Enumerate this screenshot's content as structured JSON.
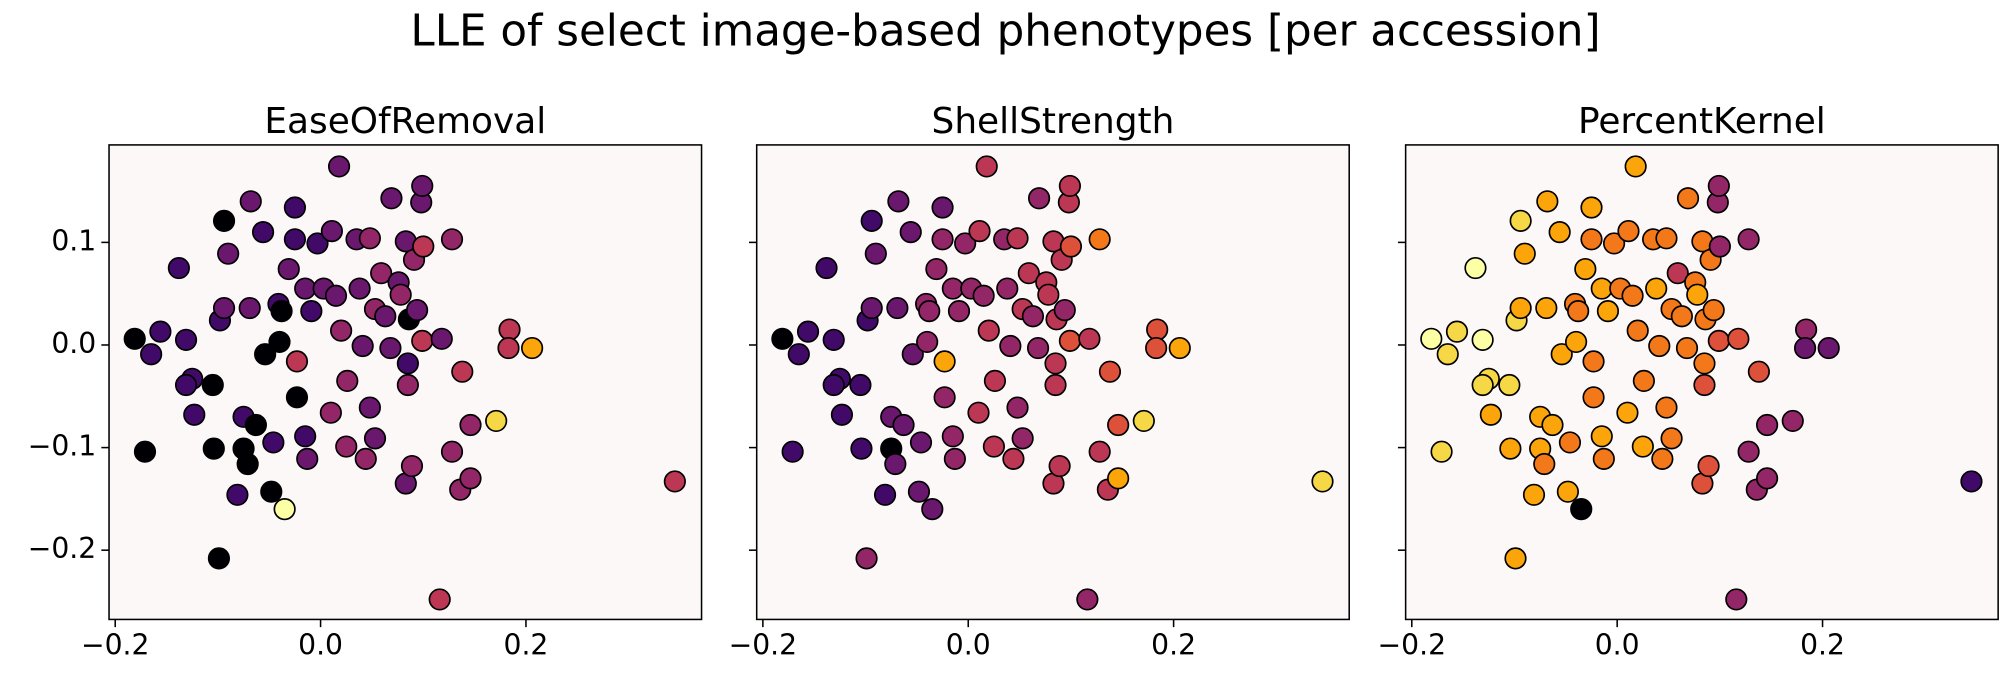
{
  "title": "LLE of select image-based phenotypes [per accession]",
  "chart_data": [
    {
      "type": "scatter",
      "title": "EaseOfRemoval",
      "x": [
        -0.181,
        -0.165,
        -0.171,
        -0.156,
        -0.138,
        -0.131,
        -0.125,
        -0.123,
        -0.131,
        -0.105,
        -0.104,
        -0.094,
        -0.098,
        -0.094,
        -0.09,
        -0.081,
        -0.075,
        -0.075,
        -0.071,
        -0.069,
        -0.068,
        -0.063,
        -0.056,
        -0.054,
        -0.048,
        -0.046,
        -0.041,
        -0.035,
        -0.04,
        -0.038,
        -0.031,
        -0.025,
        -0.025,
        -0.023,
        -0.023,
        -0.015,
        -0.013,
        -0.015,
        -0.009,
        -0.003,
        0.003,
        0.01,
        0.011,
        0.015,
        0.018,
        0.02,
        0.025,
        0.026,
        0.035,
        0.038,
        0.041,
        0.044,
        0.048,
        0.048,
        0.053,
        0.053,
        0.059,
        0.063,
        0.068,
        0.069,
        0.076,
        0.078,
        0.083,
        0.085,
        0.091,
        0.086,
        0.094,
        0.099,
        0.098,
        0.099,
        0.1,
        0.085,
        0.083,
        0.089,
        0.118,
        0.128,
        0.138,
        0.128,
        0.136,
        0.146,
        0.146,
        0.171,
        0.184,
        0.183,
        0.206,
        0.116,
        0.345,
        -0.099
      ],
      "values": [
        0.006,
        -0.009,
        -0.104,
        0.013,
        0.075,
        0.005,
        -0.033,
        -0.068,
        -0.039,
        -0.039,
        -0.101,
        0.121,
        0.024,
        0.036,
        0.089,
        -0.146,
        -0.07,
        -0.101,
        -0.116,
        0.036,
        0.14,
        -0.078,
        0.11,
        -0.009,
        -0.143,
        -0.095,
        0.04,
        -0.16,
        0.003,
        0.033,
        0.074,
        0.134,
        0.103,
        -0.016,
        -0.051,
        -0.089,
        -0.111,
        0.055,
        0.033,
        0.099,
        0.055,
        -0.066,
        0.111,
        0.048,
        0.174,
        0.014,
        -0.099,
        -0.035,
        0.103,
        0.055,
        -0.001,
        -0.111,
        -0.061,
        0.104,
        -0.091,
        0.035,
        0.07,
        0.028,
        -0.003,
        0.143,
        0.061,
        0.049,
        0.101,
        -0.018,
        0.083,
        0.025,
        0.034,
        0.004,
        0.139,
        0.155,
        0.096,
        -0.039,
        -0.135,
        -0.118,
        0.006,
        0.103,
        -0.026,
        -0.104,
        -0.141,
        -0.13,
        -0.078,
        -0.074,
        0.015,
        -0.003,
        -0.003,
        -0.248,
        -0.133,
        -0.208
      ],
      "colors": [
        "#000004",
        "#420a68",
        "#000004",
        "#420a68",
        "#420a68",
        "#420a68",
        "#420a68",
        "#420a68",
        "#420a68",
        "#000004",
        "#000004",
        "#000004",
        "#420a68",
        "#6a176e",
        "#6a176e",
        "#420a68",
        "#420a68",
        "#000004",
        "#000004",
        "#6a176e",
        "#6a176e",
        "#000004",
        "#420a68",
        "#000004",
        "#000004",
        "#420a68",
        "#420a68",
        "#fcffa4",
        "#000004",
        "#000004",
        "#6a176e",
        "#420a68",
        "#420a68",
        "#bc3754",
        "#000004",
        "#420a68",
        "#6a176e",
        "#6a176e",
        "#420a68",
        "#420a68",
        "#6a176e",
        "#932667",
        "#6a176e",
        "#6a176e",
        "#6a176e",
        "#932667",
        "#932667",
        "#932667",
        "#6a176e",
        "#6a176e",
        "#6a176e",
        "#932667",
        "#6a176e",
        "#932667",
        "#6a176e",
        "#932667",
        "#932667",
        "#6a176e",
        "#6a176e",
        "#6a176e",
        "#6a176e",
        "#932667",
        "#6a176e",
        "#420a68",
        "#932667",
        "#000004",
        "#6a176e",
        "#bc3754",
        "#6a176e",
        "#6a176e",
        "#bc3754",
        "#932667",
        "#6a176e",
        "#932667",
        "#6a176e",
        "#932667",
        "#bc3754",
        "#932667",
        "#932667",
        "#932667",
        "#932667",
        "#f6d746",
        "#bc3754",
        "#bc3754",
        "#fca50a",
        "#bc3754",
        "#bc3754",
        "#000004"
      ],
      "xlim": [
        -0.206,
        0.371
      ],
      "ylim": [
        -0.2675,
        0.195
      ],
      "xticks": [
        {
          "value": -0.2,
          "label": "−0.2"
        },
        {
          "value": 0,
          "label": "0.0"
        },
        {
          "value": 0.2,
          "label": "0.2"
        }
      ],
      "yticks": [
        {
          "value": -0.2,
          "label": "−0.2"
        },
        {
          "value": -0.1,
          "label": "−0.1"
        },
        {
          "value": 0,
          "label": "0.0"
        },
        {
          "value": 0.1,
          "label": "0.1"
        }
      ],
      "background": "#fcf8f8"
    },
    {
      "type": "scatter",
      "title": "ShellStrength",
      "x": [
        -0.181,
        -0.165,
        -0.171,
        -0.156,
        -0.138,
        -0.131,
        -0.125,
        -0.123,
        -0.131,
        -0.105,
        -0.104,
        -0.094,
        -0.098,
        -0.094,
        -0.09,
        -0.081,
        -0.075,
        -0.075,
        -0.071,
        -0.069,
        -0.068,
        -0.063,
        -0.056,
        -0.054,
        -0.048,
        -0.046,
        -0.041,
        -0.035,
        -0.04,
        -0.038,
        -0.031,
        -0.025,
        -0.025,
        -0.023,
        -0.023,
        -0.015,
        -0.013,
        -0.015,
        -0.009,
        -0.003,
        0.003,
        0.01,
        0.011,
        0.015,
        0.018,
        0.02,
        0.025,
        0.026,
        0.035,
        0.038,
        0.041,
        0.044,
        0.048,
        0.048,
        0.053,
        0.053,
        0.059,
        0.063,
        0.068,
        0.069,
        0.076,
        0.078,
        0.083,
        0.085,
        0.091,
        0.086,
        0.094,
        0.099,
        0.098,
        0.099,
        0.1,
        0.085,
        0.083,
        0.089,
        0.118,
        0.128,
        0.138,
        0.128,
        0.136,
        0.146,
        0.146,
        0.171,
        0.184,
        0.183,
        0.206,
        0.116,
        0.345,
        -0.099
      ],
      "values": [
        0.006,
        -0.009,
        -0.104,
        0.013,
        0.075,
        0.005,
        -0.033,
        -0.068,
        -0.039,
        -0.039,
        -0.101,
        0.121,
        0.024,
        0.036,
        0.089,
        -0.146,
        -0.07,
        -0.101,
        -0.116,
        0.036,
        0.14,
        -0.078,
        0.11,
        -0.009,
        -0.143,
        -0.095,
        0.04,
        -0.16,
        0.003,
        0.033,
        0.074,
        0.134,
        0.103,
        -0.016,
        -0.051,
        -0.089,
        -0.111,
        0.055,
        0.033,
        0.099,
        0.055,
        -0.066,
        0.111,
        0.048,
        0.174,
        0.014,
        -0.099,
        -0.035,
        0.103,
        0.055,
        -0.001,
        -0.111,
        -0.061,
        0.104,
        -0.091,
        0.035,
        0.07,
        0.028,
        -0.003,
        0.143,
        0.061,
        0.049,
        0.101,
        -0.018,
        0.083,
        0.025,
        0.034,
        0.004,
        0.139,
        0.155,
        0.096,
        -0.039,
        -0.135,
        -0.118,
        0.006,
        0.103,
        -0.026,
        -0.104,
        -0.141,
        -0.13,
        -0.078,
        -0.074,
        0.015,
        -0.003,
        -0.003,
        -0.248,
        -0.133,
        -0.208
      ],
      "colors": [
        "#000004",
        "#420a68",
        "#420a68",
        "#420a68",
        "#420a68",
        "#420a68",
        "#420a68",
        "#420a68",
        "#420a68",
        "#420a68",
        "#420a68",
        "#420a68",
        "#420a68",
        "#6a176e",
        "#6a176e",
        "#420a68",
        "#6a176e",
        "#000004",
        "#6a176e",
        "#6a176e",
        "#6a176e",
        "#6a176e",
        "#6a176e",
        "#6a176e",
        "#6a176e",
        "#6a176e",
        "#932667",
        "#6a176e",
        "#932667",
        "#932667",
        "#932667",
        "#6a176e",
        "#932667",
        "#fca50a",
        "#932667",
        "#932667",
        "#932667",
        "#932667",
        "#932667",
        "#932667",
        "#932667",
        "#bc3754",
        "#bc3754",
        "#932667",
        "#bc3754",
        "#bc3754",
        "#bc3754",
        "#bc3754",
        "#932667",
        "#932667",
        "#932667",
        "#bc3754",
        "#932667",
        "#bc3754",
        "#932667",
        "#bc3754",
        "#bc3754",
        "#932667",
        "#932667",
        "#932667",
        "#bc3754",
        "#bc3754",
        "#bc3754",
        "#bc3754",
        "#bc3754",
        "#bc3754",
        "#932667",
        "#dd513a",
        "#bc3754",
        "#bc3754",
        "#dd513a",
        "#bc3754",
        "#bc3754",
        "#bc3754",
        "#bc3754",
        "#f37819",
        "#dd513a",
        "#bc3754",
        "#bc3754",
        "#fca50a",
        "#dd513a",
        "#f6d746",
        "#dd513a",
        "#dd513a",
        "#fca50a",
        "#932667",
        "#f6d746",
        "#932667"
      ],
      "xlim": [
        -0.206,
        0.371
      ],
      "ylim": [
        -0.2675,
        0.195
      ],
      "xticks": [
        {
          "value": -0.2,
          "label": "−0.2"
        },
        {
          "value": 0,
          "label": "0.0"
        },
        {
          "value": 0.2,
          "label": "0.2"
        }
      ],
      "yticks": [
        -0.2,
        -0.1,
        0,
        0.1
      ],
      "background": "#fcf8f8"
    },
    {
      "type": "scatter",
      "title": "PercentKernel",
      "x": [
        -0.181,
        -0.165,
        -0.171,
        -0.156,
        -0.138,
        -0.131,
        -0.125,
        -0.123,
        -0.131,
        -0.105,
        -0.104,
        -0.094,
        -0.098,
        -0.094,
        -0.09,
        -0.081,
        -0.075,
        -0.075,
        -0.071,
        -0.069,
        -0.068,
        -0.063,
        -0.056,
        -0.054,
        -0.048,
        -0.046,
        -0.041,
        -0.035,
        -0.04,
        -0.038,
        -0.031,
        -0.025,
        -0.025,
        -0.023,
        -0.023,
        -0.015,
        -0.013,
        -0.015,
        -0.009,
        -0.003,
        0.003,
        0.01,
        0.011,
        0.015,
        0.018,
        0.02,
        0.025,
        0.026,
        0.035,
        0.038,
        0.041,
        0.044,
        0.048,
        0.048,
        0.053,
        0.053,
        0.059,
        0.063,
        0.068,
        0.069,
        0.076,
        0.078,
        0.083,
        0.085,
        0.091,
        0.086,
        0.094,
        0.099,
        0.098,
        0.099,
        0.1,
        0.085,
        0.083,
        0.089,
        0.118,
        0.128,
        0.138,
        0.128,
        0.136,
        0.146,
        0.146,
        0.171,
        0.184,
        0.183,
        0.206,
        0.116,
        0.345,
        -0.099
      ],
      "values": [
        0.006,
        -0.009,
        -0.104,
        0.013,
        0.075,
        0.005,
        -0.033,
        -0.068,
        -0.039,
        -0.039,
        -0.101,
        0.121,
        0.024,
        0.036,
        0.089,
        -0.146,
        -0.07,
        -0.101,
        -0.116,
        0.036,
        0.14,
        -0.078,
        0.11,
        -0.009,
        -0.143,
        -0.095,
        0.04,
        -0.16,
        0.003,
        0.033,
        0.074,
        0.134,
        0.103,
        -0.016,
        -0.051,
        -0.089,
        -0.111,
        0.055,
        0.033,
        0.099,
        0.055,
        -0.066,
        0.111,
        0.048,
        0.174,
        0.014,
        -0.099,
        -0.035,
        0.103,
        0.055,
        -0.001,
        -0.111,
        -0.061,
        0.104,
        -0.091,
        0.035,
        0.07,
        0.028,
        -0.003,
        0.143,
        0.061,
        0.049,
        0.101,
        -0.018,
        0.083,
        0.025,
        0.034,
        0.004,
        0.139,
        0.155,
        0.096,
        -0.039,
        -0.135,
        -0.118,
        0.006,
        0.103,
        -0.026,
        -0.104,
        -0.141,
        -0.13,
        -0.078,
        -0.074,
        0.015,
        -0.003,
        -0.003,
        -0.248,
        -0.133,
        -0.208
      ],
      "colors": [
        "#fcffa4",
        "#f6d746",
        "#f6d746",
        "#f6d746",
        "#fcffa4",
        "#fcffa4",
        "#f6d746",
        "#fca50a",
        "#f6d746",
        "#f6d746",
        "#fca50a",
        "#f6d746",
        "#f6d746",
        "#fca50a",
        "#fca50a",
        "#fca50a",
        "#fca50a",
        "#fca50a",
        "#f37819",
        "#fca50a",
        "#fca50a",
        "#fca50a",
        "#fca50a",
        "#fca50a",
        "#fca50a",
        "#f37819",
        "#f37819",
        "#000004",
        "#fca50a",
        "#f37819",
        "#fca50a",
        "#fca50a",
        "#f37819",
        "#f37819",
        "#f37819",
        "#fca50a",
        "#f37819",
        "#fca50a",
        "#fca50a",
        "#f37819",
        "#f37819",
        "#fca50a",
        "#f37819",
        "#f37819",
        "#fca50a",
        "#f37819",
        "#fca50a",
        "#f37819",
        "#f37819",
        "#fca50a",
        "#f37819",
        "#f37819",
        "#f37819",
        "#f37819",
        "#f37819",
        "#f37819",
        "#bc3754",
        "#f37819",
        "#f37819",
        "#f37819",
        "#f37819",
        "#fca50a",
        "#f37819",
        "#f37819",
        "#f37819",
        "#f37819",
        "#f37819",
        "#dd513a",
        "#932667",
        "#932667",
        "#932667",
        "#dd513a",
        "#dd513a",
        "#dd513a",
        "#dd513a",
        "#932667",
        "#dd513a",
        "#932667",
        "#932667",
        "#932667",
        "#932667",
        "#932667",
        "#932667",
        "#6a176e",
        "#6a176e",
        "#932667",
        "#420a68",
        "#fca50a"
      ],
      "xlim": [
        -0.206,
        0.371
      ],
      "ylim": [
        -0.2675,
        0.195
      ],
      "xticks": [
        {
          "value": -0.2,
          "label": "−0.2"
        },
        {
          "value": 0,
          "label": "0.0"
        },
        {
          "value": 0.2,
          "label": "0.2"
        }
      ],
      "yticks": [
        -0.2,
        -0.1,
        0,
        0.1
      ],
      "background": "#fcf8f8"
    }
  ]
}
